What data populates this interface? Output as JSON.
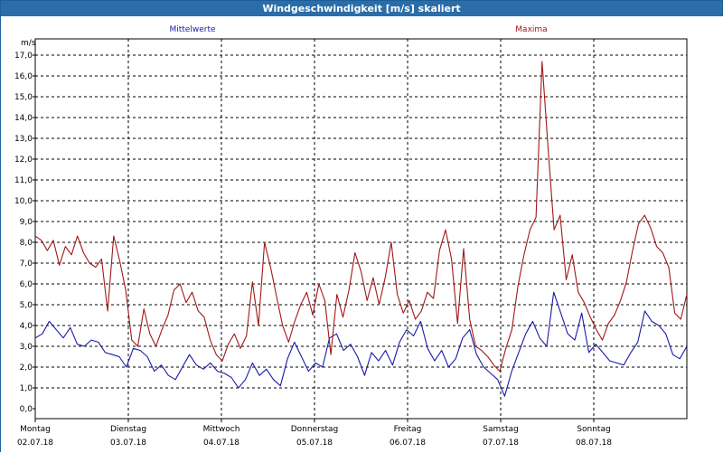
{
  "window": {
    "title": "Windgeschwindigkeit [m/s] skaliert"
  },
  "chart_data": {
    "type": "line",
    "title": "Windgeschwindigkeit [m/s] skaliert",
    "ylabel": "m/s",
    "ylim": [
      0,
      17.5
    ],
    "y_ticks": [
      "0,0",
      "1,0",
      "2,0",
      "3,0",
      "4,0",
      "5,0",
      "6,0",
      "7,0",
      "8,0",
      "9,0",
      "10,0",
      "11,0",
      "12,0",
      "13,0",
      "14,0",
      "15,0",
      "16,0",
      "17,0"
    ],
    "x_range_days": [
      0,
      7
    ],
    "x_ticks": [
      {
        "day": "Montag",
        "date": "02.07.18"
      },
      {
        "day": "Dienstag",
        "date": "03.07.18"
      },
      {
        "day": "Mittwoch",
        "date": "04.07.18"
      },
      {
        "day": "Donnerstag",
        "date": "05.07.18"
      },
      {
        "day": "Freitag",
        "date": "06.07.18"
      },
      {
        "day": "Samstag",
        "date": "07.07.18"
      },
      {
        "day": "Sonntag",
        "date": "08.07.18"
      }
    ],
    "grid": true,
    "colors": {
      "mittel": "#1a1aa8",
      "maxima": "#a01818",
      "grid": "#000000"
    },
    "series": [
      {
        "name": "Mittelwerte",
        "color": "#1a1aa8",
        "values": [
          3.4,
          3.6,
          4.2,
          3.8,
          3.4,
          3.9,
          3.1,
          3.0,
          3.3,
          3.2,
          2.7,
          2.6,
          2.5,
          2.0,
          2.9,
          2.8,
          2.5,
          1.8,
          2.1,
          1.6,
          1.4,
          2.0,
          2.6,
          2.1,
          1.9,
          2.2,
          1.8,
          1.7,
          1.5,
          1.0,
          1.4,
          2.2,
          1.6,
          1.9,
          1.4,
          1.1,
          2.4,
          3.2,
          2.5,
          1.8,
          2.2,
          2.0,
          3.4,
          3.6,
          2.8,
          3.1,
          2.5,
          1.6,
          2.7,
          2.3,
          2.8,
          2.1,
          3.2,
          3.8,
          3.5,
          4.2,
          2.9,
          2.3,
          2.8,
          2.0,
          2.4,
          3.4,
          3.8,
          2.6,
          2.0,
          1.7,
          1.4,
          0.6,
          1.8,
          2.7,
          3.6,
          4.2,
          3.4,
          3.0,
          5.6,
          4.6,
          3.6,
          3.3,
          4.6,
          2.7,
          3.1,
          2.7,
          2.3,
          2.2,
          2.1,
          2.7,
          3.2,
          4.7,
          4.2,
          4.0,
          3.6,
          2.6,
          2.4,
          3.0
        ],
        "max": [
          null
        ]
      },
      {
        "name": "Maxima",
        "color": "#a01818",
        "values": [
          8.3,
          8.1,
          7.6,
          8.1,
          6.9,
          7.8,
          7.4,
          8.3,
          7.5,
          7.0,
          6.8,
          7.2,
          4.7,
          8.3,
          7.1,
          5.7,
          3.3,
          3.0,
          4.8,
          3.6,
          3.0,
          3.8,
          4.5,
          5.7,
          6.0,
          5.1,
          5.6,
          4.7,
          4.4,
          3.3,
          2.6,
          2.3,
          3.1,
          3.6,
          2.9,
          3.5,
          6.1,
          4.0,
          8.0,
          6.8,
          5.4,
          4.0,
          3.2,
          4.2,
          5.0,
          5.6,
          4.5,
          6.0,
          5.2,
          2.6,
          5.5,
          4.4,
          5.7,
          7.5,
          6.6,
          5.2,
          6.3,
          5.0,
          6.3,
          8.0,
          5.5,
          4.6,
          5.2,
          4.3,
          4.7,
          5.6,
          5.3,
          7.6,
          8.6,
          7.2,
          4.1,
          7.7,
          4.3,
          3.0,
          2.8,
          2.5,
          2.1,
          1.8,
          2.9,
          3.8,
          5.9,
          7.4,
          8.6,
          9.2,
          16.7,
          12.5,
          8.6,
          9.3,
          6.2,
          7.4,
          5.6,
          5.1,
          4.4,
          3.8,
          3.3,
          4.1,
          4.5,
          5.2,
          6.1,
          7.6,
          8.9,
          9.3,
          8.7,
          7.8,
          7.5,
          6.8,
          4.6,
          4.3,
          5.5
        ]
      }
    ]
  }
}
